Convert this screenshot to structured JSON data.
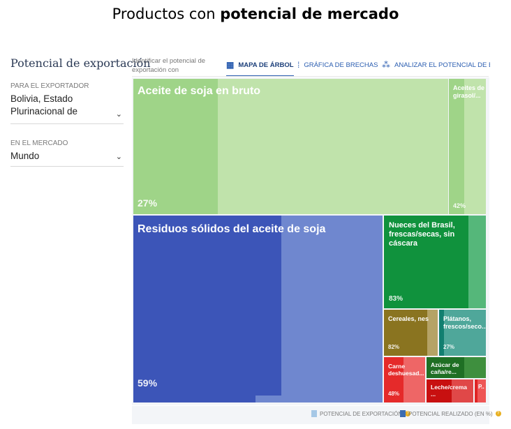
{
  "page": {
    "title_prefix": "Productos con ",
    "title_bold": "potencial de mercado"
  },
  "sidebar": {
    "title": "Potencial de exportación",
    "exporter_label": "PARA EL EXPORTADOR",
    "exporter_value": "Bolivia, Estado Plurinacional de",
    "market_label": "EN EL MERCADO",
    "market_value": "Mundo"
  },
  "toolbar": {
    "intro": "Identificar el potencial de exportación con",
    "tabs": [
      {
        "label": "MAPA DE ÁRBOL",
        "icon": "treemap-icon",
        "active": true
      },
      {
        "label": "GRÁFICA DE BRECHAS",
        "icon": "gap-chart-icon",
        "active": false
      },
      {
        "label": "ANALIZAR EL POTENCIAL DE EXPOR",
        "icon": "analyze-icon",
        "active": false
      }
    ]
  },
  "treemap": {
    "tiles": [
      {
        "name": "Aceite de soja en bruto",
        "percent": "27%",
        "color": "#c0e3ab",
        "realized_color": "#9fd488"
      },
      {
        "name": "Aceites de girasol/...",
        "percent": "42%",
        "color": "#c0e3ab",
        "realized_color": "#9fd488"
      },
      {
        "name": "Residuos sólidos del aceite de soja",
        "percent": "59%",
        "color": "#6f87cf",
        "realized_color": "#3c55b8"
      },
      {
        "name": "Nueces del Brasil, frescas/secas, sin cáscara",
        "percent": "83%",
        "color": "#55b77a",
        "realized_color": "#10923d"
      },
      {
        "name": "Cereales, nes",
        "percent": "82%",
        "color": "#b5a366",
        "realized_color": "#8a7420"
      },
      {
        "name": "Plátanos, frescos/seco...",
        "percent": "27%",
        "color": "#4fa79a",
        "realized_color": "#127f70"
      },
      {
        "name": "Carne deshuesad...",
        "percent": "48%",
        "color": "#ee6666",
        "realized_color": "#e52a2a"
      },
      {
        "name": "Azúcar de caña/re...",
        "percent": "",
        "color": "#3e8f3e",
        "realized_color": "#1f6f24"
      },
      {
        "name": "Leche/crema ...",
        "percent": "",
        "color": "#e04848",
        "realized_color": "#c81010"
      },
      {
        "name": "P..",
        "percent": "",
        "color": "#ee5555",
        "realized_color": "#e02424"
      }
    ]
  },
  "legend": {
    "export_potential": "POTENCIAL DE EXPORTACIÓN",
    "realized_potential": "POTENCIAL REALIZADO (EN %)",
    "export_color": "#a6c8e6",
    "realized_color": "#3c6cb0"
  }
}
